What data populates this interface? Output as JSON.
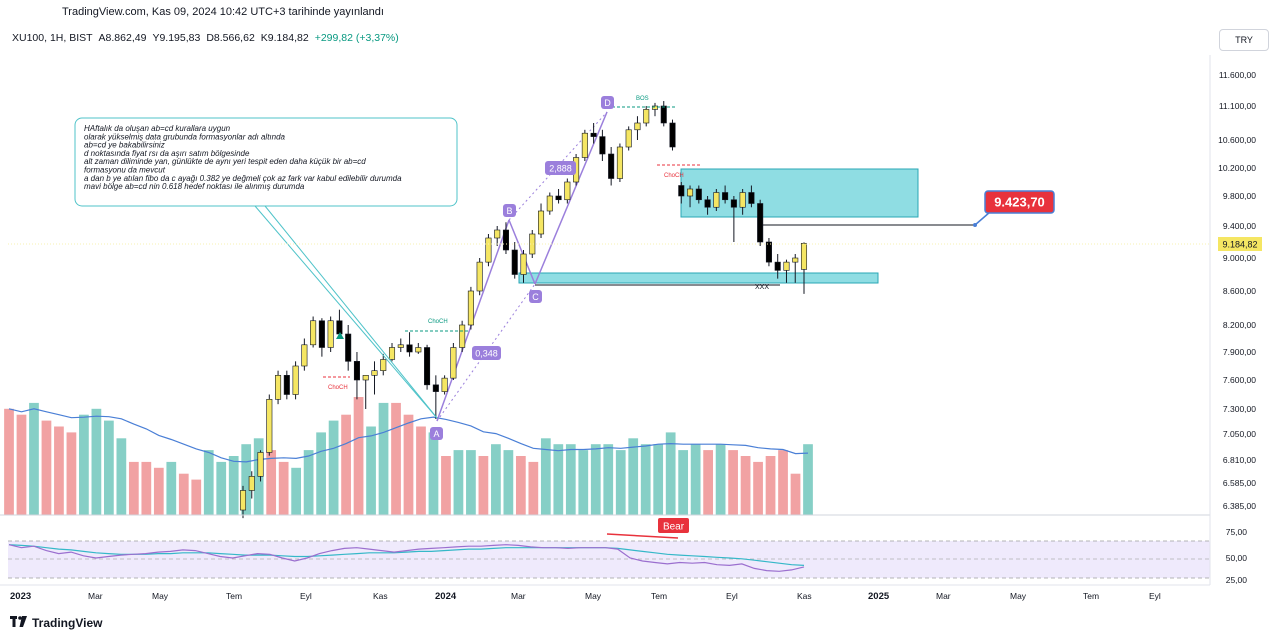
{
  "publication": {
    "text": "TradingView.com, Kas 09, 2024 10:42 UTC+3 tarihinde yayınlandı"
  },
  "symbol": {
    "ticker": "XU100, 1H, BIST",
    "open": "A8.862,49",
    "high": "Y9.195,83",
    "low": "D8.566,62",
    "close": "K9.184,82",
    "change": "+299,82 (+3,37%)"
  },
  "currency": "TRY",
  "price_axis": {
    "ticks": [
      "11.600,00",
      "11.100,00",
      "10.600,00",
      "10.200,00",
      "9.800,00",
      "9.400,00",
      "9.000,00",
      "8.600,00",
      "8.200,00",
      "7.900,00",
      "7.600,00",
      "7.300,00",
      "7.050,00",
      "6.810,00",
      "6.585,00",
      "6.385,00"
    ],
    "current_price": "9.184,82"
  },
  "rsi_axis": {
    "ticks": [
      "75,00",
      "50,00",
      "25,00"
    ]
  },
  "time_axis": {
    "labels": [
      "2023",
      "Mar",
      "May",
      "Tem",
      "Eyl",
      "Kas",
      "2024",
      "Mar",
      "May",
      "Tem",
      "Eyl",
      "Kas",
      "2025",
      "Mar",
      "May",
      "Tem",
      "Eyl"
    ]
  },
  "annotation_box": {
    "lines": [
      "HAftalık da oluşan ab=cd kurallara uygun",
      "olarak yükselmiş data grubunda formasyonlar adı altında",
      "ab=cd ye bakabilirsiniz",
      "d noktasında fiyat rsı da aşırı satım bölgesinde",
      "alt zaman diliminde yan, günlükte de aynı yeri tespit eden daha küçük bir ab=cd",
      "formasyonu da mevcut",
      "a dan b ye atılan fibo da c ayağı 0.382 ye değmeli çok az fark var kabul edilebilir durumda",
      "mavi bölge ab=cd nin 0.618 hedef noktası ile alınmış durumda"
    ]
  },
  "pattern_points": {
    "a": "A",
    "b": "B",
    "c": "C",
    "d": "D"
  },
  "ratio_labels": {
    "bc": "0,348",
    "cd": "2,888"
  },
  "structure_labels": {
    "choch_1": "ChoCH",
    "choch_2": "ChoCH",
    "choch_3": "ChoCH",
    "choch_4": "ChoCH",
    "bos": "BOS",
    "xxx": "XXX"
  },
  "price_callout": "9.423,70",
  "rsi_badge": "Bear",
  "footer_brand": "TradingView",
  "colors": {
    "bull_candle": "#f5e663",
    "bear_candle": "#000000",
    "volume_up": "#86cfc6",
    "volume_down": "#f1a2a3",
    "zone_fill": "#8fdde3",
    "zone_border": "#2aa7b6",
    "ma_line": "#4a7fd6",
    "rsi_line": "#9b6fcf",
    "rsi_ma": "#35b8c8",
    "callout_bg": "#e8323c",
    "pattern_label_bg": "#9b7fdc"
  },
  "chart_data": {
    "type": "candlestick",
    "title": "",
    "xlabel": "",
    "ylabel": "",
    "ylim": [
      6385,
      11600
    ],
    "candles": [
      {
        "o": 6350,
        "h": 6560,
        "l": 6280,
        "c": 6520
      },
      {
        "o": 6520,
        "h": 6700,
        "l": 6450,
        "c": 6650
      },
      {
        "o": 6650,
        "h": 6900,
        "l": 6600,
        "c": 6880
      },
      {
        "o": 6880,
        "h": 7450,
        "l": 6850,
        "c": 7400
      },
      {
        "o": 7400,
        "h": 7700,
        "l": 7350,
        "c": 7650
      },
      {
        "o": 7650,
        "h": 7700,
        "l": 7400,
        "c": 7450
      },
      {
        "o": 7450,
        "h": 7800,
        "l": 7400,
        "c": 7750
      },
      {
        "o": 7750,
        "h": 8050,
        "l": 7700,
        "c": 7980
      },
      {
        "o": 7980,
        "h": 8300,
        "l": 7950,
        "c": 8250
      },
      {
        "o": 8250,
        "h": 8280,
        "l": 7850,
        "c": 7950
      },
      {
        "o": 7950,
        "h": 8300,
        "l": 7900,
        "c": 8250
      },
      {
        "o": 8250,
        "h": 8380,
        "l": 8050,
        "c": 8100
      },
      {
        "o": 8100,
        "h": 8200,
        "l": 7700,
        "c": 7800
      },
      {
        "o": 7800,
        "h": 7900,
        "l": 7400,
        "c": 7600
      },
      {
        "o": 7600,
        "h": 7650,
        "l": 7300,
        "c": 7650
      },
      {
        "o": 7650,
        "h": 7800,
        "l": 7450,
        "c": 7700
      },
      {
        "o": 7700,
        "h": 7880,
        "l": 7650,
        "c": 7820
      },
      {
        "o": 7820,
        "h": 8000,
        "l": 7800,
        "c": 7950
      },
      {
        "o": 7950,
        "h": 8050,
        "l": 7900,
        "c": 7980
      },
      {
        "o": 7980,
        "h": 8120,
        "l": 7850,
        "c": 7900
      },
      {
        "o": 7900,
        "h": 8000,
        "l": 7880,
        "c": 7950
      },
      {
        "o": 7950,
        "h": 7980,
        "l": 7500,
        "c": 7550
      },
      {
        "o": 7550,
        "h": 7650,
        "l": 7200,
        "c": 7480
      },
      {
        "o": 7480,
        "h": 7650,
        "l": 7450,
        "c": 7620
      },
      {
        "o": 7620,
        "h": 8000,
        "l": 7600,
        "c": 7950
      },
      {
        "o": 7950,
        "h": 8250,
        "l": 7900,
        "c": 8200
      },
      {
        "o": 8200,
        "h": 8650,
        "l": 8150,
        "c": 8600
      },
      {
        "o": 8600,
        "h": 9000,
        "l": 8550,
        "c": 8950
      },
      {
        "o": 8950,
        "h": 9300,
        "l": 8900,
        "c": 9250
      },
      {
        "o": 9250,
        "h": 9400,
        "l": 9150,
        "c": 9350
      },
      {
        "o": 9350,
        "h": 9450,
        "l": 9050,
        "c": 9100
      },
      {
        "o": 9100,
        "h": 9200,
        "l": 8750,
        "c": 8800
      },
      {
        "o": 8800,
        "h": 9100,
        "l": 8700,
        "c": 9050
      },
      {
        "o": 9050,
        "h": 9350,
        "l": 9000,
        "c": 9300
      },
      {
        "o": 9300,
        "h": 9700,
        "l": 9250,
        "c": 9600
      },
      {
        "o": 9600,
        "h": 9850,
        "l": 9550,
        "c": 9800
      },
      {
        "o": 9800,
        "h": 9900,
        "l": 9700,
        "c": 9750
      },
      {
        "o": 9750,
        "h": 10050,
        "l": 9700,
        "c": 10000
      },
      {
        "o": 10000,
        "h": 10400,
        "l": 9950,
        "c": 10350
      },
      {
        "o": 10350,
        "h": 10750,
        "l": 10300,
        "c": 10700
      },
      {
        "o": 10700,
        "h": 10850,
        "l": 10550,
        "c": 10650
      },
      {
        "o": 10650,
        "h": 10750,
        "l": 10300,
        "c": 10400
      },
      {
        "o": 10400,
        "h": 10500,
        "l": 9950,
        "c": 10050
      },
      {
        "o": 10050,
        "h": 10550,
        "l": 10000,
        "c": 10500
      },
      {
        "o": 10500,
        "h": 10800,
        "l": 10450,
        "c": 10750
      },
      {
        "o": 10750,
        "h": 10950,
        "l": 10600,
        "c": 10850
      },
      {
        "o": 10850,
        "h": 11100,
        "l": 10800,
        "c": 11050
      },
      {
        "o": 11050,
        "h": 11150,
        "l": 10950,
        "c": 11100
      },
      {
        "o": 11100,
        "h": 11180,
        "l": 10800,
        "c": 10850
      },
      {
        "o": 10850,
        "h": 10900,
        "l": 10450,
        "c": 10500
      },
      {
        "o": 9950,
        "h": 10000,
        "l": 9700,
        "c": 9800
      },
      {
        "o": 9800,
        "h": 9950,
        "l": 9650,
        "c": 9900
      },
      {
        "o": 9900,
        "h": 9950,
        "l": 9700,
        "c": 9750
      },
      {
        "o": 9750,
        "h": 9800,
        "l": 9550,
        "c": 9650
      },
      {
        "o": 9650,
        "h": 9900,
        "l": 9600,
        "c": 9850
      },
      {
        "o": 9850,
        "h": 9950,
        "l": 9700,
        "c": 9750
      },
      {
        "o": 9750,
        "h": 9800,
        "l": 9200,
        "c": 9650
      },
      {
        "o": 9650,
        "h": 9900,
        "l": 9550,
        "c": 9850
      },
      {
        "o": 9850,
        "h": 9950,
        "l": 9650,
        "c": 9700
      },
      {
        "o": 9700,
        "h": 9750,
        "l": 9150,
        "c": 9200
      },
      {
        "o": 9200,
        "h": 9250,
        "l": 8900,
        "c": 8950
      },
      {
        "o": 8950,
        "h": 9050,
        "l": 8750,
        "c": 8850
      },
      {
        "o": 8850,
        "h": 8980,
        "l": 8700,
        "c": 8950
      },
      {
        "o": 8950,
        "h": 9050,
        "l": 8700,
        "c": 9000
      },
      {
        "o": 8862,
        "h": 9195,
        "l": 8566,
        "c": 9184
      }
    ],
    "volume": [
      {
        "v": 0.9,
        "up": false
      },
      {
        "v": 0.85,
        "up": false
      },
      {
        "v": 0.95,
        "up": true
      },
      {
        "v": 0.8,
        "up": false
      },
      {
        "v": 0.75,
        "up": false
      },
      {
        "v": 0.7,
        "up": false
      },
      {
        "v": 0.85,
        "up": true
      },
      {
        "v": 0.9,
        "up": true
      },
      {
        "v": 0.8,
        "up": true
      },
      {
        "v": 0.65,
        "up": true
      },
      {
        "v": 0.45,
        "up": false
      },
      {
        "v": 0.45,
        "up": false
      },
      {
        "v": 0.4,
        "up": false
      },
      {
        "v": 0.45,
        "up": true
      },
      {
        "v": 0.35,
        "up": false
      },
      {
        "v": 0.3,
        "up": false
      },
      {
        "v": 0.55,
        "up": true
      },
      {
        "v": 0.45,
        "up": true
      },
      {
        "v": 0.5,
        "up": true
      },
      {
        "v": 0.6,
        "up": true
      },
      {
        "v": 0.65,
        "up": true
      },
      {
        "v": 0.55,
        "up": false
      },
      {
        "v": 0.45,
        "up": false
      },
      {
        "v": 0.4,
        "up": true
      },
      {
        "v": 0.55,
        "up": true
      },
      {
        "v": 0.7,
        "up": true
      },
      {
        "v": 0.8,
        "up": true
      },
      {
        "v": 0.85,
        "up": false
      },
      {
        "v": 1.0,
        "up": false
      },
      {
        "v": 0.75,
        "up": true
      },
      {
        "v": 0.95,
        "up": true
      },
      {
        "v": 0.95,
        "up": false
      },
      {
        "v": 0.85,
        "up": false
      },
      {
        "v": 0.75,
        "up": false
      },
      {
        "v": 0.7,
        "up": true
      },
      {
        "v": 0.5,
        "up": false
      },
      {
        "v": 0.55,
        "up": true
      },
      {
        "v": 0.55,
        "up": true
      },
      {
        "v": 0.5,
        "up": false
      },
      {
        "v": 0.6,
        "up": true
      },
      {
        "v": 0.55,
        "up": true
      },
      {
        "v": 0.5,
        "up": false
      },
      {
        "v": 0.45,
        "up": false
      },
      {
        "v": 0.65,
        "up": true
      },
      {
        "v": 0.6,
        "up": true
      },
      {
        "v": 0.6,
        "up": true
      },
      {
        "v": 0.55,
        "up": true
      },
      {
        "v": 0.6,
        "up": true
      },
      {
        "v": 0.6,
        "up": true
      },
      {
        "v": 0.55,
        "up": true
      },
      {
        "v": 0.65,
        "up": true
      },
      {
        "v": 0.6,
        "up": true
      },
      {
        "v": 0.6,
        "up": true
      },
      {
        "v": 0.7,
        "up": true
      },
      {
        "v": 0.55,
        "up": true
      },
      {
        "v": 0.6,
        "up": true
      },
      {
        "v": 0.55,
        "up": false
      },
      {
        "v": 0.6,
        "up": true
      },
      {
        "v": 0.55,
        "up": false
      },
      {
        "v": 0.5,
        "up": false
      },
      {
        "v": 0.45,
        "up": false
      },
      {
        "v": 0.5,
        "up": false
      },
      {
        "v": 0.55,
        "up": false
      },
      {
        "v": 0.35,
        "up": false
      },
      {
        "v": 0.6,
        "up": true
      }
    ],
    "rsi": [
      70,
      66,
      68,
      62,
      58,
      60,
      55,
      52,
      54,
      56,
      57,
      58,
      60,
      61,
      63,
      62,
      58,
      54,
      52,
      55,
      58,
      57,
      52,
      48,
      52,
      58,
      62,
      65,
      66,
      64,
      62,
      60,
      62,
      64,
      65,
      66,
      67,
      68,
      68,
      69,
      70,
      69,
      67,
      66,
      66,
      65,
      66,
      66,
      66,
      64,
      52,
      48,
      46,
      44,
      46,
      45,
      46,
      43,
      42,
      44,
      38,
      35,
      34,
      36,
      40
    ],
    "rsi_ma": [
      70,
      69,
      68,
      66,
      64,
      63,
      61,
      59,
      58,
      57,
      57,
      57,
      58,
      58,
      59,
      59,
      59,
      58,
      57,
      56,
      56,
      56,
      55,
      54,
      54,
      55,
      56,
      57,
      58,
      59,
      59,
      59,
      60,
      61,
      61,
      62,
      63,
      64,
      64,
      65,
      66,
      66,
      66,
      66,
      66,
      66,
      66,
      66,
      66,
      65,
      63,
      61,
      59,
      57,
      56,
      55,
      54,
      53,
      52,
      51,
      49,
      47,
      45,
      43,
      42
    ]
  }
}
